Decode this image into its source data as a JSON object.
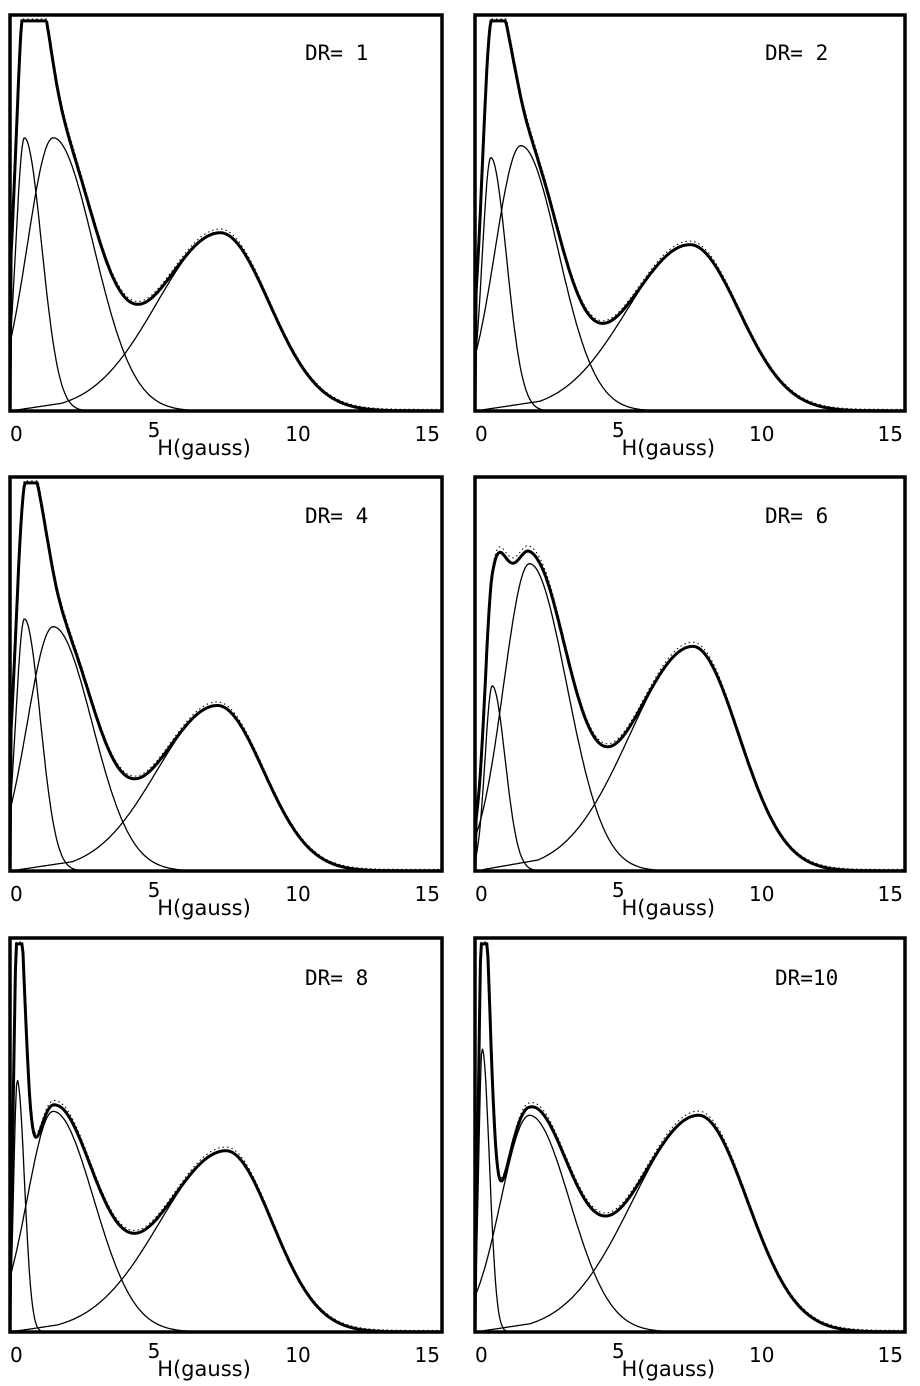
{
  "chart_data": [
    {
      "type": "line",
      "panel_label": "DR= 1",
      "xlabel": "H(gauss)",
      "x_ticks": [
        "0",
        "5",
        "10",
        "15"
      ],
      "xlim": [
        0,
        15
      ],
      "components": [
        {
          "amplitude": 0.69,
          "mu": 0.5,
          "sigma_left": 0.3,
          "sigma_right": 0.6
        },
        {
          "amplitude": 0.69,
          "mu": 1.5,
          "sigma_left": 0.9,
          "sigma_right": 1.4
        },
        {
          "amplitude": 0.45,
          "mu": 7.3,
          "sigma_left": 2.2,
          "sigma_right": 1.7,
          "tail_amplitude": 0.06,
          "tail_start": 0,
          "tail_end": 5.5
        }
      ],
      "observed": true
    },
    {
      "type": "line",
      "panel_label": "DR= 2",
      "xlabel": "H(gauss)",
      "x_ticks": [
        "0",
        "5",
        "10",
        "15"
      ],
      "xlim": [
        0,
        15
      ],
      "components": [
        {
          "amplitude": 0.64,
          "mu": 0.55,
          "sigma_left": 0.3,
          "sigma_right": 0.55
        },
        {
          "amplitude": 0.67,
          "mu": 1.6,
          "sigma_left": 0.9,
          "sigma_right": 1.3
        },
        {
          "amplitude": 0.42,
          "mu": 7.5,
          "sigma_left": 2.2,
          "sigma_right": 1.7,
          "tail_amplitude": 0.06,
          "tail_start": 0,
          "tail_end": 5.5
        }
      ],
      "observed": true
    },
    {
      "type": "line",
      "panel_label": "DR= 4",
      "xlabel": "H(gauss)",
      "x_ticks": [
        "0",
        "5",
        "10",
        "15"
      ],
      "xlim": [
        0,
        15
      ],
      "components": [
        {
          "amplitude": 0.64,
          "mu": 0.5,
          "sigma_left": 0.3,
          "sigma_right": 0.55
        },
        {
          "amplitude": 0.62,
          "mu": 1.5,
          "sigma_left": 0.9,
          "sigma_right": 1.35
        },
        {
          "amplitude": 0.42,
          "mu": 7.2,
          "sigma_left": 2.1,
          "sigma_right": 1.6,
          "tail_amplitude": 0.06,
          "tail_start": 0,
          "tail_end": 5.5
        }
      ],
      "observed": true
    },
    {
      "type": "line",
      "panel_label": "DR= 6",
      "xlabel": "H(gauss)",
      "x_ticks": [
        "0",
        "5",
        "10",
        "15"
      ],
      "xlim": [
        0,
        15
      ],
      "components": [
        {
          "amplitude": 0.47,
          "mu": 0.6,
          "sigma_left": 0.25,
          "sigma_right": 0.45
        },
        {
          "amplitude": 0.78,
          "mu": 1.9,
          "sigma_left": 0.9,
          "sigma_right": 1.3
        },
        {
          "amplitude": 0.57,
          "mu": 7.6,
          "sigma_left": 2.2,
          "sigma_right": 1.6,
          "tail_amplitude": 0.07,
          "tail_start": 0,
          "tail_end": 5.5
        }
      ],
      "observed": true
    },
    {
      "type": "line",
      "panel_label": "DR= 8",
      "xlabel": "H(gauss)",
      "x_ticks": [
        "0",
        "5",
        "10",
        "15"
      ],
      "xlim": [
        0,
        15
      ],
      "components": [
        {
          "amplitude": 0.64,
          "mu": 0.25,
          "sigma_left": 0.12,
          "sigma_right": 0.25
        },
        {
          "amplitude": 0.56,
          "mu": 1.5,
          "sigma_left": 0.9,
          "sigma_right": 1.4
        },
        {
          "amplitude": 0.46,
          "mu": 7.5,
          "sigma_left": 2.3,
          "sigma_right": 1.6,
          "tail_amplitude": 0.06,
          "tail_start": 0,
          "tail_end": 5.5
        },
        {
          "amplitude": 0.25,
          "mu": 0.3,
          "sigma_left": 0.12,
          "sigma_right": 0.25,
          "in_total_only": true
        }
      ],
      "observed": true
    },
    {
      "type": "line",
      "panel_label": "DR=10",
      "xlabel": "H(gauss)",
      "x_ticks": [
        "0",
        "5",
        "10",
        "15"
      ],
      "xlim": [
        0,
        15
      ],
      "components": [
        {
          "amplitude": 0.72,
          "mu": 0.25,
          "sigma_left": 0.12,
          "sigma_right": 0.25
        },
        {
          "amplitude": 0.55,
          "mu": 1.9,
          "sigma_left": 1.0,
          "sigma_right": 1.4
        },
        {
          "amplitude": 0.55,
          "mu": 7.8,
          "sigma_left": 2.3,
          "sigma_right": 1.7,
          "tail_amplitude": 0.06,
          "tail_start": 0,
          "tail_end": 5.5
        },
        {
          "amplitude": 0.28,
          "mu": 0.3,
          "sigma_left": 0.12,
          "sigma_right": 0.25,
          "in_total_only": true
        }
      ],
      "observed": true
    }
  ]
}
